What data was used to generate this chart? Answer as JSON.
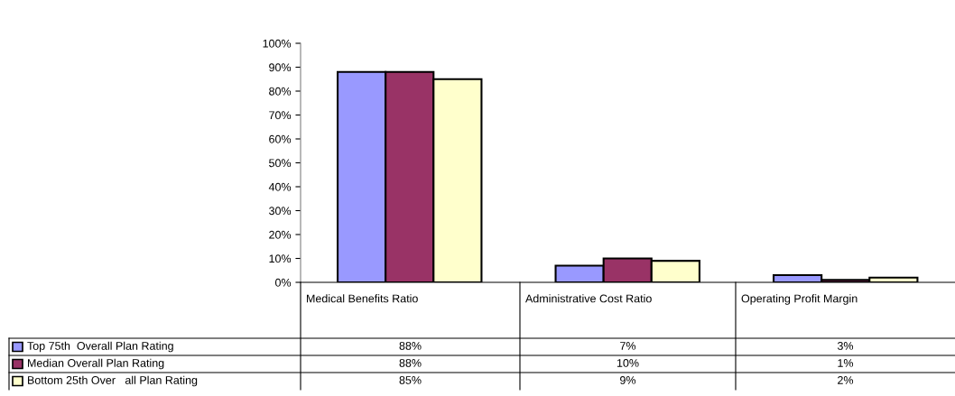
{
  "chart_data": {
    "type": "bar",
    "categories": [
      "Medical Benefits Ratio",
      "Administrative Cost Ratio",
      "Operating Profit Margin"
    ],
    "series": [
      {
        "name": "Top 75th  Overall Plan Rating",
        "color": "#9999ff",
        "values": [
          88,
          7,
          3
        ],
        "value_labels": [
          "88%",
          "7%",
          "3%"
        ]
      },
      {
        "name": "Median Overall Plan Rating",
        "color": "#993366",
        "values": [
          88,
          10,
          1
        ],
        "value_labels": [
          "88%",
          "10%",
          "1%"
        ]
      },
      {
        "name": "Bottom 25th Over   all Plan Rating",
        "color": "#ffffcc",
        "values": [
          85,
          9,
          2
        ],
        "value_labels": [
          "85%",
          "9%",
          "2%"
        ]
      }
    ],
    "ylim": [
      0,
      100
    ],
    "yticks": [
      {
        "value": 0,
        "label": "0%"
      },
      {
        "value": 10,
        "label": "10%"
      },
      {
        "value": 20,
        "label": "20%"
      },
      {
        "value": 30,
        "label": "30%"
      },
      {
        "value": 40,
        "label": "40%"
      },
      {
        "value": 50,
        "label": "50%"
      },
      {
        "value": 60,
        "label": "60%"
      },
      {
        "value": 70,
        "label": "70%"
      },
      {
        "value": 80,
        "label": "80%"
      },
      {
        "value": 90,
        "label": "90%"
      },
      {
        "value": 100,
        "label": "100%"
      }
    ],
    "grid": false,
    "legend": "bottom left"
  }
}
